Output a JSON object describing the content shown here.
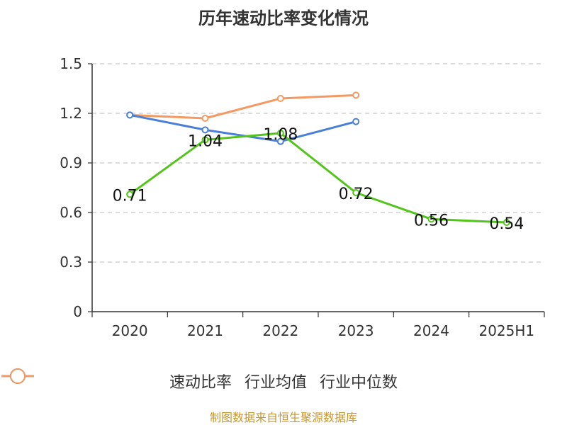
{
  "chart_data": {
    "type": "line",
    "title": "历年速动比率变化情况",
    "categories": [
      "2020",
      "2021",
      "2022",
      "2023",
      "2024",
      "2025H1"
    ],
    "y_ticks": [
      "0",
      "0.3",
      "0.6",
      "0.9",
      "1.2",
      "1.5"
    ],
    "ylim": [
      0,
      1.5
    ],
    "grid": true,
    "legend_position": "bottom",
    "series": [
      {
        "name": "速动比率",
        "color": "#52c41a",
        "values": [
          0.71,
          1.04,
          1.08,
          0.72,
          0.56,
          0.54
        ],
        "labels": [
          "0.71",
          "1.04",
          "1.08",
          "0.72",
          "0.56",
          "0.54"
        ]
      },
      {
        "name": "行业均值",
        "color": "#4a7fd8",
        "values": [
          1.19,
          1.1,
          1.03,
          1.15,
          null,
          null
        ]
      },
      {
        "name": "行业中位数",
        "color": "#f39a62",
        "values": [
          1.19,
          1.17,
          1.29,
          1.31,
          null,
          null
        ]
      }
    ]
  },
  "source_note": "制图数据来自恒生聚源数据库"
}
